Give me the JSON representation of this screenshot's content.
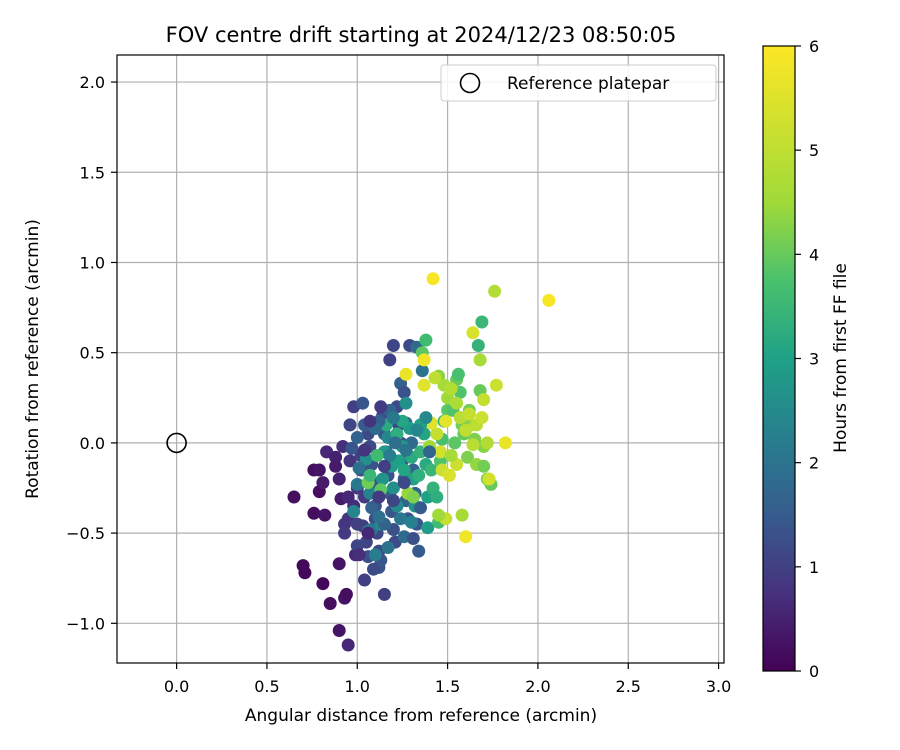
{
  "chart_data": {
    "type": "scatter",
    "title": "FOV centre drift starting at 2024/12/23 08:50:05",
    "xlabel": "Angular distance from reference (arcmin)",
    "ylabel": "Rotation from reference (arcmin)",
    "xlim": [
      -0.33,
      3.03
    ],
    "ylim": [
      -1.22,
      2.15
    ],
    "xticks": [
      0.0,
      0.5,
      1.0,
      1.5,
      2.0,
      2.5,
      3.0
    ],
    "xtick_labels": [
      "0.0",
      "0.5",
      "1.0",
      "1.5",
      "2.0",
      "2.5",
      "3.0"
    ],
    "yticks": [
      -1.0,
      -0.5,
      0.0,
      0.5,
      1.0,
      1.5,
      2.0
    ],
    "ytick_labels": [
      "−1.0",
      "−0.5",
      "0.0",
      "0.5",
      "1.0",
      "1.5",
      "2.0"
    ],
    "grid": true,
    "legend": {
      "location": "upper right",
      "label": "Reference platepar"
    },
    "reference_point": {
      "x": 0.0,
      "y": 0.0
    },
    "colorbar": {
      "label": "Hours from first FF file",
      "range": [
        0,
        6
      ],
      "ticks": [
        0,
        1,
        2,
        3,
        4,
        5,
        6
      ],
      "tick_labels": [
        "0",
        "1",
        "2",
        "3",
        "4",
        "5",
        "6"
      ],
      "colormap": "viridis"
    },
    "series": [
      {
        "fields": [
          "x",
          "y",
          "hours"
        ],
        "points": [
          [
            0.65,
            -0.3,
            0.2
          ],
          [
            0.7,
            -0.68,
            0.1
          ],
          [
            0.71,
            -0.72,
            0.1
          ],
          [
            0.76,
            -0.39,
            0.2
          ],
          [
            0.76,
            -0.15,
            0.2
          ],
          [
            0.79,
            -0.15,
            0.3
          ],
          [
            0.79,
            -0.27,
            0.2
          ],
          [
            0.81,
            -0.22,
            0.4
          ],
          [
            0.81,
            -0.78,
            0.1
          ],
          [
            0.82,
            -0.4,
            0.3
          ],
          [
            0.83,
            -0.05,
            0.6
          ],
          [
            0.85,
            -0.89,
            0.2
          ],
          [
            0.88,
            -0.08,
            0.5
          ],
          [
            0.9,
            -0.67,
            0.3
          ],
          [
            0.9,
            -1.04,
            0.3
          ],
          [
            0.91,
            -0.31,
            0.4
          ],
          [
            0.92,
            -0.02,
            0.7
          ],
          [
            0.93,
            -0.86,
            0.3
          ],
          [
            0.94,
            -0.84,
            0.2
          ],
          [
            0.95,
            -1.12,
            0.6
          ],
          [
            0.98,
            0.2,
            1.0
          ],
          [
            0.99,
            -0.62,
            0.6
          ],
          [
            0.93,
            -0.45,
            0.8
          ],
          [
            0.93,
            -0.5,
            0.9
          ],
          [
            0.98,
            -0.35,
            0.7
          ],
          [
            0.95,
            -0.42,
            0.8
          ],
          [
            1.0,
            -0.25,
            0.9
          ],
          [
            0.96,
            -0.1,
            0.8
          ],
          [
            0.96,
            0.1,
            1.1
          ],
          [
            1.02,
            -0.07,
            1.0
          ],
          [
            1.02,
            -0.15,
            1.1
          ],
          [
            1.04,
            -0.3,
            0.9
          ],
          [
            1.03,
            -0.46,
            1.0
          ],
          [
            1.05,
            -0.55,
            1.1
          ],
          [
            1.06,
            -0.63,
            1.3
          ],
          [
            1.06,
            0.05,
            1.2
          ],
          [
            1.07,
            -0.02,
            1.2
          ],
          [
            1.08,
            -0.12,
            1.3
          ],
          [
            1.09,
            -0.22,
            1.4
          ],
          [
            1.1,
            -0.35,
            1.3
          ],
          [
            1.1,
            -0.42,
            1.2
          ],
          [
            1.11,
            -0.5,
            1.1
          ],
          [
            1.12,
            -0.6,
            1.2
          ],
          [
            1.12,
            -0.69,
            1.3
          ],
          [
            1.13,
            -0.65,
            1.4
          ],
          [
            1.14,
            0.15,
            1.2
          ],
          [
            1.15,
            0.05,
            1.4
          ],
          [
            1.16,
            -0.05,
            1.5
          ],
          [
            1.17,
            -0.18,
            1.3
          ],
          [
            1.18,
            -0.28,
            1.5
          ],
          [
            1.19,
            -0.38,
            1.4
          ],
          [
            1.2,
            -0.48,
            1.3
          ],
          [
            1.21,
            -0.55,
            1.2
          ],
          [
            1.22,
            0.2,
            1.2
          ],
          [
            1.23,
            0.1,
            1.1
          ],
          [
            1.24,
            0.0,
            1.3
          ],
          [
            1.25,
            -0.1,
            1.4
          ],
          [
            1.26,
            -0.2,
            1.5
          ],
          [
            1.27,
            -0.32,
            1.6
          ],
          [
            1.28,
            -0.42,
            1.4
          ],
          [
            1.29,
            0.54,
            1.2
          ],
          [
            1.2,
            0.54,
            1.1
          ],
          [
            1.18,
            0.46,
            1.0
          ],
          [
            1.24,
            0.33,
            1.6
          ],
          [
            1.26,
            0.28,
            1.3
          ],
          [
            1.27,
            0.11,
            1.7
          ],
          [
            1.3,
            0.0,
            1.8
          ],
          [
            1.31,
            -0.15,
            1.6
          ],
          [
            1.32,
            -0.28,
            1.7
          ],
          [
            1.33,
            -0.45,
            1.4
          ],
          [
            1.34,
            -0.6,
            1.5
          ],
          [
            1.33,
            0.53,
            1.8
          ],
          [
            1.36,
            0.4,
            2.0
          ],
          [
            1.15,
            -0.84,
            1.0
          ],
          [
            1.09,
            -0.7,
            1.2
          ],
          [
            1.04,
            -0.76,
            1.0
          ],
          [
            1.0,
            -0.57,
            1.1
          ],
          [
            1.03,
            0.22,
            1.4
          ],
          [
            1.0,
            -0.23,
            2.1
          ],
          [
            0.98,
            -0.38,
            2.4
          ],
          [
            1.05,
            -0.09,
            2.6
          ],
          [
            1.07,
            -0.28,
            2.3
          ],
          [
            1.08,
            -0.48,
            2.0
          ],
          [
            1.1,
            -0.62,
            2.2
          ],
          [
            1.13,
            -0.45,
            2.5
          ],
          [
            1.14,
            -0.2,
            2.7
          ],
          [
            1.15,
            -0.05,
            2.8
          ],
          [
            1.17,
            0.03,
            2.4
          ],
          [
            1.19,
            -0.13,
            2.9
          ],
          [
            1.2,
            -0.25,
            2.6
          ],
          [
            1.22,
            -0.35,
            2.5
          ],
          [
            1.23,
            -0.1,
            3.0
          ],
          [
            1.25,
            -0.02,
            2.8
          ],
          [
            1.26,
            -0.15,
            3.1
          ],
          [
            1.27,
            0.22,
            2.6
          ],
          [
            1.29,
            0.08,
            2.9
          ],
          [
            1.3,
            -0.08,
            3.2
          ],
          [
            1.31,
            -0.2,
            3.0
          ],
          [
            1.32,
            -0.35,
            2.7
          ],
          [
            1.34,
            -0.18,
            3.3
          ],
          [
            1.35,
            -0.05,
            3.4
          ],
          [
            1.37,
            0.05,
            3.1
          ],
          [
            1.38,
            -0.12,
            3.2
          ],
          [
            1.39,
            -0.3,
            3.0
          ],
          [
            1.39,
            -0.47,
            2.9
          ],
          [
            1.41,
            -0.15,
            3.5
          ],
          [
            1.42,
            -0.25,
            3.4
          ],
          [
            1.44,
            -0.3,
            3.3
          ],
          [
            1.45,
            -0.44,
            3.6
          ],
          [
            1.46,
            -0.1,
            3.8
          ],
          [
            1.47,
            0.02,
            3.7
          ],
          [
            1.48,
            0.12,
            3.5
          ],
          [
            1.5,
            0.18,
            3.9
          ],
          [
            1.52,
            0.3,
            3.6
          ],
          [
            1.53,
            0.18,
            3.8
          ],
          [
            1.54,
            0.0,
            3.9
          ],
          [
            1.55,
            0.35,
            4.0
          ],
          [
            1.56,
            0.38,
            3.7
          ],
          [
            1.57,
            0.28,
            3.8
          ],
          [
            1.58,
            0.1,
            4.1
          ],
          [
            1.59,
            0.05,
            4.0
          ],
          [
            1.61,
            -0.08,
            4.2
          ],
          [
            1.62,
            0.18,
            4.1
          ],
          [
            1.63,
            0.1,
            4.3
          ],
          [
            1.65,
            0.02,
            4.2
          ],
          [
            1.66,
            -0.12,
            4.4
          ],
          [
            1.67,
            0.54,
            3.4
          ],
          [
            1.68,
            0.29,
            4.0
          ],
          [
            1.69,
            0.67,
            3.5
          ],
          [
            1.7,
            -0.02,
            4.3
          ],
          [
            1.7,
            -0.13,
            4.1
          ],
          [
            1.72,
            -0.2,
            4.2
          ],
          [
            1.74,
            -0.23,
            4.0
          ],
          [
            1.38,
            0.57,
            3.6
          ],
          [
            1.36,
            0.5,
            3.9
          ],
          [
            1.45,
            0.37,
            4.3
          ],
          [
            1.48,
            0.32,
            4.6
          ],
          [
            1.5,
            0.25,
            4.5
          ],
          [
            1.52,
            0.3,
            4.8
          ],
          [
            1.55,
            0.22,
            4.7
          ],
          [
            1.57,
            0.14,
            4.9
          ],
          [
            1.6,
            0.07,
            5.0
          ],
          [
            1.62,
            0.16,
            5.1
          ],
          [
            1.64,
            -0.01,
            4.9
          ],
          [
            1.66,
            0.1,
            5.0
          ],
          [
            1.68,
            0.46,
            4.6
          ],
          [
            1.69,
            0.14,
            5.2
          ],
          [
            1.7,
            0.24,
            5.1
          ],
          [
            1.72,
            0.0,
            4.8
          ],
          [
            1.73,
            -0.2,
            5.3
          ],
          [
            1.76,
            0.84,
            4.8
          ],
          [
            1.77,
            0.32,
            5.2
          ],
          [
            1.64,
            0.61,
            5.4
          ],
          [
            1.43,
            0.36,
            5.0
          ],
          [
            1.44,
            0.05,
            5.1
          ],
          [
            1.46,
            -0.05,
            5.3
          ],
          [
            1.47,
            -0.15,
            5.2
          ],
          [
            1.49,
            -0.42,
            5.1
          ],
          [
            1.51,
            -0.18,
            5.4
          ],
          [
            1.55,
            -0.12,
            5.2
          ],
          [
            1.58,
            -0.4,
            4.6
          ],
          [
            1.6,
            -0.52,
            5.8
          ],
          [
            1.37,
            0.46,
            5.8
          ],
          [
            1.27,
            0.38,
            5.7
          ],
          [
            1.42,
            0.91,
            5.9
          ],
          [
            2.06,
            0.79,
            5.9
          ],
          [
            1.82,
            0.0,
            5.7
          ],
          [
            1.49,
            0.12,
            5.6
          ],
          [
            1.41,
            0.11,
            5.5
          ],
          [
            1.37,
            0.32,
            5.5
          ],
          [
            1.28,
            -0.28,
            4.4
          ],
          [
            1.31,
            -0.3,
            4.2
          ],
          [
            1.45,
            -0.4,
            4.5
          ],
          [
            1.52,
            -0.07,
            4.6
          ],
          [
            1.4,
            -0.02,
            4.5
          ],
          [
            1.13,
            -0.26,
            3.9
          ],
          [
            1.06,
            -0.22,
            4.1
          ],
          [
            1.07,
            -0.18,
            3.5
          ],
          [
            1.16,
            0.1,
            3.2
          ],
          [
            1.11,
            -0.07,
            3.6
          ],
          [
            1.22,
            0.05,
            3.3
          ],
          [
            1.25,
            0.12,
            3.1
          ],
          [
            1.35,
            0.1,
            3.0
          ],
          [
            1.12,
            0.12,
            1.6
          ],
          [
            1.18,
            0.18,
            1.7
          ],
          [
            1.04,
            0.1,
            1.5
          ],
          [
            1.0,
            0.03,
            1.6
          ],
          [
            0.97,
            -0.03,
            1.4
          ],
          [
            1.08,
            -0.36,
            1.6
          ],
          [
            1.15,
            -0.45,
            1.7
          ],
          [
            1.26,
            -0.52,
            1.8
          ],
          [
            1.17,
            -0.58,
            2.0
          ],
          [
            1.06,
            -0.49,
            2.2
          ],
          [
            1.12,
            -0.41,
            1.9
          ],
          [
            1.24,
            -0.42,
            2.1
          ],
          [
            1.3,
            -0.44,
            2.3
          ],
          [
            1.18,
            -0.07,
            2.2
          ],
          [
            1.27,
            -0.04,
            2.0
          ],
          [
            1.21,
            0.0,
            1.9
          ],
          [
            1.33,
            0.07,
            2.4
          ],
          [
            1.38,
            0.14,
            2.5
          ],
          [
            1.2,
            0.14,
            2.1
          ],
          [
            1.1,
            0.08,
            1.8
          ],
          [
            1.01,
            -0.14,
            1.9
          ],
          [
            1.04,
            -0.04,
            0.8
          ],
          [
            1.12,
            -0.3,
            0.9
          ],
          [
            1.0,
            -0.45,
            1.0
          ],
          [
            0.95,
            -0.3,
            0.6
          ],
          [
            0.9,
            -0.2,
            0.5
          ],
          [
            0.88,
            -0.13,
            0.4
          ],
          [
            1.01,
            -0.62,
            0.7
          ],
          [
            1.06,
            -0.5,
            0.6
          ],
          [
            1.2,
            -0.32,
            1.1
          ],
          [
            1.15,
            -0.13,
            1.0
          ],
          [
            1.26,
            -0.22,
            1.2
          ],
          [
            1.31,
            -0.53,
            1.3
          ],
          [
            1.35,
            -0.36,
            1.5
          ],
          [
            1.4,
            -0.05,
            1.7
          ],
          [
            1.13,
            0.2,
            0.9
          ],
          [
            1.07,
            0.12,
            0.8
          ]
        ]
      }
    ]
  }
}
